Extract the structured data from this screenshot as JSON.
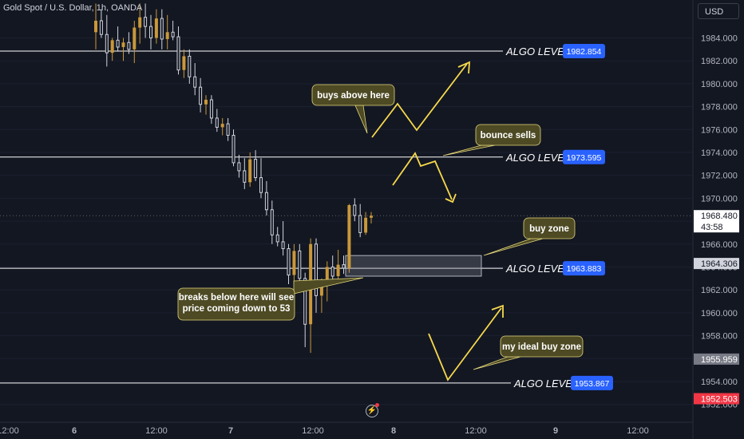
{
  "symbol": "Gold Spot / U.S. Dollar, 1h, OANDA",
  "currency": "USD",
  "colors": {
    "background": "#131722",
    "bull_candle": "#c9983a",
    "bear_candle": "#d1d4dc",
    "algo_line": "#ffffff",
    "algo_badge": "#2962ff",
    "arrow": "#f7d94c",
    "annotation_bg": "#4d4a24",
    "zone_fill": "rgba(120,123,134,0.35)",
    "sell_badge": "#f23645",
    "grey_badge": "#787b86"
  },
  "chart_data": {
    "type": "candlestick",
    "title": "Gold Spot / U.S. Dollar, 1h, OANDA",
    "y_axis": {
      "range": [
        1951.0,
        1986.0
      ],
      "ticks": [
        "1984.000",
        "1982.000",
        "1980.000",
        "1978.000",
        "1976.000",
        "1974.000",
        "1972.000",
        "1970.000",
        "1968.000",
        "1966.000",
        "1964.000",
        "1962.000",
        "1960.000",
        "1958.000",
        "1956.000",
        "1954.000",
        "1952.000"
      ]
    },
    "x_axis": {
      "ticks": [
        "12:00",
        "6",
        "12:00",
        "7",
        "12:00",
        "8",
        "12:00",
        "9",
        "12:00"
      ]
    },
    "algo_levels": [
      {
        "label": "ALGO LEVEL",
        "value": "1982.854"
      },
      {
        "label": "ALGO LEVEL",
        "value": "1973.595"
      },
      {
        "label": "ALGO LEVEL",
        "value": "1963.883"
      },
      {
        "label": "ALGO LEVEL",
        "value": "1953.867"
      }
    ],
    "price_labels": {
      "current_price": "1968.480",
      "countdown": "43:58",
      "level_1964": "1964.306",
      "level_1955": "1955.959",
      "level_1952": "1952.503"
    },
    "annotations": [
      "buys above here",
      "bounce sells",
      "buy zone",
      "breaks below here will see price coming down to 53",
      "my ideal buy zone"
    ],
    "buy_zone": {
      "top": 1965.0,
      "bottom": 1963.2
    },
    "candles": [
      {
        "o": 1984.5,
        "h": 1987.0,
        "l": 1983.0,
        "c": 1985.5
      },
      {
        "o": 1985.5,
        "h": 1986.5,
        "l": 1984.0,
        "c": 1984.3
      },
      {
        "o": 1984.3,
        "h": 1986.0,
        "l": 1981.5,
        "c": 1982.7
      },
      {
        "o": 1982.7,
        "h": 1984.0,
        "l": 1982.0,
        "c": 1983.8
      },
      {
        "o": 1983.8,
        "h": 1985.0,
        "l": 1982.8,
        "c": 1983.2
      },
      {
        "o": 1983.2,
        "h": 1984.0,
        "l": 1982.0,
        "c": 1983.6
      },
      {
        "o": 1983.6,
        "h": 1984.5,
        "l": 1982.6,
        "c": 1983.0
      },
      {
        "o": 1983.0,
        "h": 1985.5,
        "l": 1981.8,
        "c": 1984.9
      },
      {
        "o": 1984.9,
        "h": 1987.0,
        "l": 1983.5,
        "c": 1985.8
      },
      {
        "o": 1985.8,
        "h": 1987.0,
        "l": 1984.0,
        "c": 1985.0
      },
      {
        "o": 1985.0,
        "h": 1986.0,
        "l": 1983.0,
        "c": 1984.0
      },
      {
        "o": 1984.0,
        "h": 1986.5,
        "l": 1983.5,
        "c": 1985.7
      },
      {
        "o": 1985.7,
        "h": 1986.5,
        "l": 1983.0,
        "c": 1983.9
      },
      {
        "o": 1983.9,
        "h": 1986.0,
        "l": 1983.0,
        "c": 1984.5
      },
      {
        "o": 1984.5,
        "h": 1985.5,
        "l": 1983.8,
        "c": 1984.1
      },
      {
        "o": 1984.1,
        "h": 1985.0,
        "l": 1980.8,
        "c": 1981.2
      },
      {
        "o": 1981.2,
        "h": 1983.0,
        "l": 1980.5,
        "c": 1982.4
      },
      {
        "o": 1982.4,
        "h": 1983.0,
        "l": 1980.0,
        "c": 1980.6
      },
      {
        "o": 1980.6,
        "h": 1981.8,
        "l": 1979.0,
        "c": 1979.7
      },
      {
        "o": 1979.7,
        "h": 1980.5,
        "l": 1977.5,
        "c": 1978.2
      },
      {
        "o": 1978.2,
        "h": 1979.0,
        "l": 1977.3,
        "c": 1978.6
      },
      {
        "o": 1978.6,
        "h": 1979.0,
        "l": 1976.5,
        "c": 1977.0
      },
      {
        "o": 1977.0,
        "h": 1977.8,
        "l": 1975.8,
        "c": 1976.2
      },
      {
        "o": 1976.2,
        "h": 1977.0,
        "l": 1975.5,
        "c": 1976.5
      },
      {
        "o": 1976.5,
        "h": 1977.0,
        "l": 1975.0,
        "c": 1975.5
      },
      {
        "o": 1975.5,
        "h": 1976.0,
        "l": 1972.8,
        "c": 1973.1
      },
      {
        "o": 1973.1,
        "h": 1973.8,
        "l": 1971.8,
        "c": 1972.4
      },
      {
        "o": 1972.4,
        "h": 1973.5,
        "l": 1970.8,
        "c": 1971.4
      },
      {
        "o": 1971.4,
        "h": 1974.0,
        "l": 1971.0,
        "c": 1973.4
      },
      {
        "o": 1973.4,
        "h": 1974.2,
        "l": 1971.5,
        "c": 1971.8
      },
      {
        "o": 1971.8,
        "h": 1973.5,
        "l": 1970.0,
        "c": 1970.5
      },
      {
        "o": 1970.5,
        "h": 1971.5,
        "l": 1968.5,
        "c": 1969.0
      },
      {
        "o": 1969.0,
        "h": 1969.8,
        "l": 1966.0,
        "c": 1966.8
      },
      {
        "o": 1966.8,
        "h": 1967.5,
        "l": 1965.8,
        "c": 1966.2
      },
      {
        "o": 1966.2,
        "h": 1968.0,
        "l": 1965.0,
        "c": 1965.6
      },
      {
        "o": 1965.6,
        "h": 1966.0,
        "l": 1962.5,
        "c": 1963.3
      },
      {
        "o": 1963.3,
        "h": 1966.0,
        "l": 1962.5,
        "c": 1965.4
      },
      {
        "o": 1965.4,
        "h": 1966.0,
        "l": 1962.2,
        "c": 1963.0
      },
      {
        "o": 1963.0,
        "h": 1963.5,
        "l": 1957.0,
        "c": 1959.0
      },
      {
        "o": 1959.0,
        "h": 1966.5,
        "l": 1956.5,
        "c": 1966.0
      },
      {
        "o": 1966.0,
        "h": 1966.5,
        "l": 1960.0,
        "c": 1961.5
      },
      {
        "o": 1961.5,
        "h": 1963.0,
        "l": 1960.0,
        "c": 1962.5
      },
      {
        "o": 1962.5,
        "h": 1964.5,
        "l": 1961.0,
        "c": 1964.0
      },
      {
        "o": 1964.0,
        "h": 1965.0,
        "l": 1962.5,
        "c": 1963.2
      },
      {
        "o": 1963.2,
        "h": 1965.5,
        "l": 1962.8,
        "c": 1964.2
      },
      {
        "o": 1964.2,
        "h": 1965.0,
        "l": 1963.4,
        "c": 1963.9
      },
      {
        "o": 1963.9,
        "h": 1969.5,
        "l": 1963.5,
        "c": 1969.4
      },
      {
        "o": 1969.4,
        "h": 1970.0,
        "l": 1968.0,
        "c": 1968.5
      },
      {
        "o": 1968.5,
        "h": 1969.5,
        "l": 1966.6,
        "c": 1967.0
      },
      {
        "o": 1967.0,
        "h": 1968.8,
        "l": 1966.8,
        "c": 1968.3
      },
      {
        "o": 1968.3,
        "h": 1968.8,
        "l": 1967.8,
        "c": 1968.48
      }
    ]
  }
}
